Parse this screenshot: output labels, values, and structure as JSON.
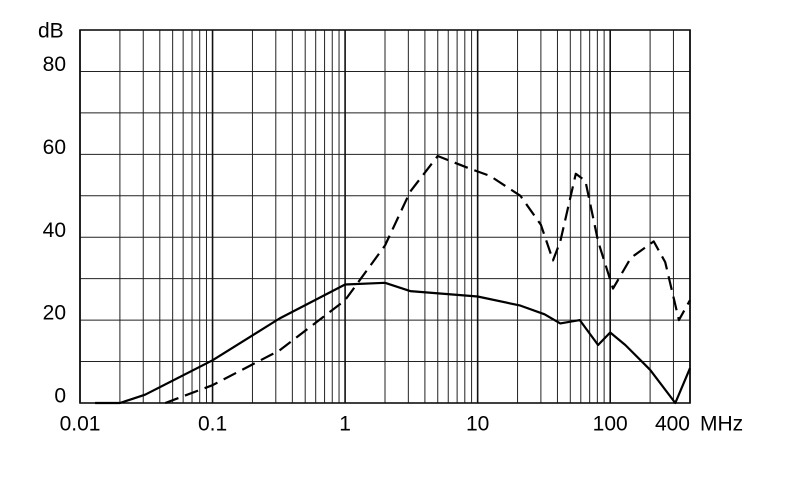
{
  "chart_data": {
    "type": "line",
    "y_label": "dB",
    "x_label": "MHz",
    "xscale": "log",
    "grid": true,
    "minor_grid": true,
    "xlim": [
      0.01,
      400
    ],
    "xticks": [
      0.01,
      0.1,
      1,
      10,
      100,
      400
    ],
    "ylim": [
      0,
      90
    ],
    "yticks": [
      0,
      20,
      40,
      60,
      80
    ],
    "ygrid": [
      0,
      10,
      20,
      30,
      40,
      50,
      60,
      70,
      80,
      90
    ],
    "series": [
      {
        "color": "#000000",
        "dash": false,
        "x": [
          0.013,
          0.02,
          0.031,
          0.1,
          0.32,
          1,
          2,
          3.1,
          10,
          21,
          32,
          42,
          59,
          81,
          100,
          130,
          200,
          310,
          400
        ],
        "values": [
          0,
          0,
          2,
          10.3,
          20.4,
          28.6,
          29,
          27,
          25.7,
          23.5,
          21.4,
          19.2,
          20,
          14,
          17,
          14,
          8,
          0,
          8.4
        ]
      },
      {
        "color": "#000000",
        "dash": true,
        "x": [
          0.044,
          0.1,
          0.32,
          1,
          2,
          3.1,
          5,
          8.8,
          12.4,
          21,
          30,
          37,
          42,
          55,
          65,
          81,
          105,
          143,
          213,
          260,
          330,
          400
        ],
        "values": [
          0,
          4.3,
          12.7,
          24.8,
          38,
          51,
          59.6,
          56.5,
          54.8,
          50,
          43,
          34.4,
          39,
          55.3,
          53.6,
          39,
          27.6,
          35,
          39,
          34,
          20,
          24.8
        ]
      }
    ]
  }
}
